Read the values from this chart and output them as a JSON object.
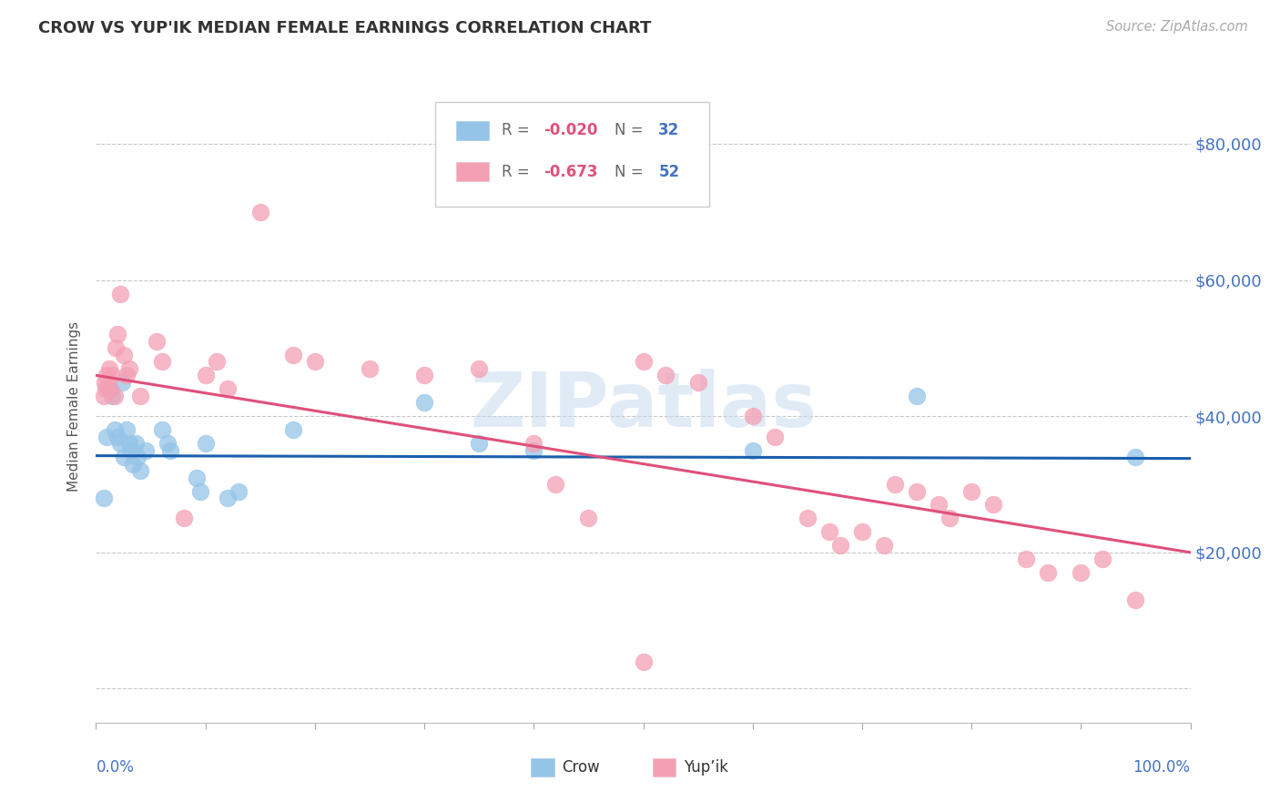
{
  "title": "CROW VS YUP'IK MEDIAN FEMALE EARNINGS CORRELATION CHART",
  "source": "Source: ZipAtlas.com",
  "ylabel": "Median Female Earnings",
  "crow_label": "Crow",
  "yupik_label": "Yup’ik",
  "crow_R": "-0.020",
  "crow_N": "32",
  "yupik_R": "-0.673",
  "yupik_N": "52",
  "ytick_vals": [
    0,
    20000,
    40000,
    60000,
    80000
  ],
  "ytick_labels_right": [
    "",
    "$20,000",
    "$40,000",
    "$60,000",
    "$80,000"
  ],
  "xlim": [
    0.0,
    1.0
  ],
  "ylim": [
    -5000,
    88000
  ],
  "watermark": "ZIPatlas",
  "crow_color": "#94C4E8",
  "yupik_color": "#F4A0B4",
  "crow_line_color": "#1A5FAD",
  "yupik_line_color": "#E0507A",
  "label_color": "#4472C4",
  "bg_color": "#FFFFFF",
  "grid_color": "#C8C8C8",
  "crow_points": [
    [
      0.007,
      28000
    ],
    [
      0.01,
      37000
    ],
    [
      0.012,
      44000
    ],
    [
      0.015,
      43000
    ],
    [
      0.017,
      38000
    ],
    [
      0.02,
      37000
    ],
    [
      0.022,
      36000
    ],
    [
      0.024,
      45000
    ],
    [
      0.025,
      34000
    ],
    [
      0.028,
      38000
    ],
    [
      0.03,
      36000
    ],
    [
      0.032,
      35000
    ],
    [
      0.034,
      33000
    ],
    [
      0.036,
      36000
    ],
    [
      0.038,
      34000
    ],
    [
      0.04,
      32000
    ],
    [
      0.045,
      35000
    ],
    [
      0.06,
      38000
    ],
    [
      0.065,
      36000
    ],
    [
      0.068,
      35000
    ],
    [
      0.092,
      31000
    ],
    [
      0.095,
      29000
    ],
    [
      0.1,
      36000
    ],
    [
      0.12,
      28000
    ],
    [
      0.13,
      29000
    ],
    [
      0.18,
      38000
    ],
    [
      0.3,
      42000
    ],
    [
      0.35,
      36000
    ],
    [
      0.4,
      35000
    ],
    [
      0.6,
      35000
    ],
    [
      0.75,
      43000
    ],
    [
      0.95,
      34000
    ]
  ],
  "yupik_points": [
    [
      0.007,
      43000
    ],
    [
      0.008,
      45000
    ],
    [
      0.009,
      44000
    ],
    [
      0.01,
      46000
    ],
    [
      0.012,
      47000
    ],
    [
      0.013,
      44000
    ],
    [
      0.015,
      46000
    ],
    [
      0.017,
      43000
    ],
    [
      0.018,
      50000
    ],
    [
      0.02,
      52000
    ],
    [
      0.022,
      58000
    ],
    [
      0.025,
      49000
    ],
    [
      0.028,
      46000
    ],
    [
      0.03,
      47000
    ],
    [
      0.04,
      43000
    ],
    [
      0.055,
      51000
    ],
    [
      0.06,
      48000
    ],
    [
      0.08,
      25000
    ],
    [
      0.1,
      46000
    ],
    [
      0.11,
      48000
    ],
    [
      0.12,
      44000
    ],
    [
      0.15,
      70000
    ],
    [
      0.18,
      49000
    ],
    [
      0.2,
      48000
    ],
    [
      0.25,
      47000
    ],
    [
      0.3,
      46000
    ],
    [
      0.35,
      47000
    ],
    [
      0.4,
      36000
    ],
    [
      0.42,
      30000
    ],
    [
      0.45,
      25000
    ],
    [
      0.5,
      48000
    ],
    [
      0.52,
      46000
    ],
    [
      0.55,
      45000
    ],
    [
      0.6,
      40000
    ],
    [
      0.62,
      37000
    ],
    [
      0.65,
      25000
    ],
    [
      0.67,
      23000
    ],
    [
      0.68,
      21000
    ],
    [
      0.7,
      23000
    ],
    [
      0.72,
      21000
    ],
    [
      0.73,
      30000
    ],
    [
      0.75,
      29000
    ],
    [
      0.77,
      27000
    ],
    [
      0.78,
      25000
    ],
    [
      0.8,
      29000
    ],
    [
      0.82,
      27000
    ],
    [
      0.85,
      19000
    ],
    [
      0.87,
      17000
    ],
    [
      0.9,
      17000
    ],
    [
      0.92,
      19000
    ],
    [
      0.95,
      13000
    ],
    [
      0.5,
      4000
    ]
  ],
  "crow_trend_x": [
    0.0,
    1.0
  ],
  "crow_trend_y": [
    34200,
    33800
  ],
  "yupik_trend_x": [
    0.0,
    1.0
  ],
  "yupik_trend_y": [
    46000,
    20000
  ]
}
